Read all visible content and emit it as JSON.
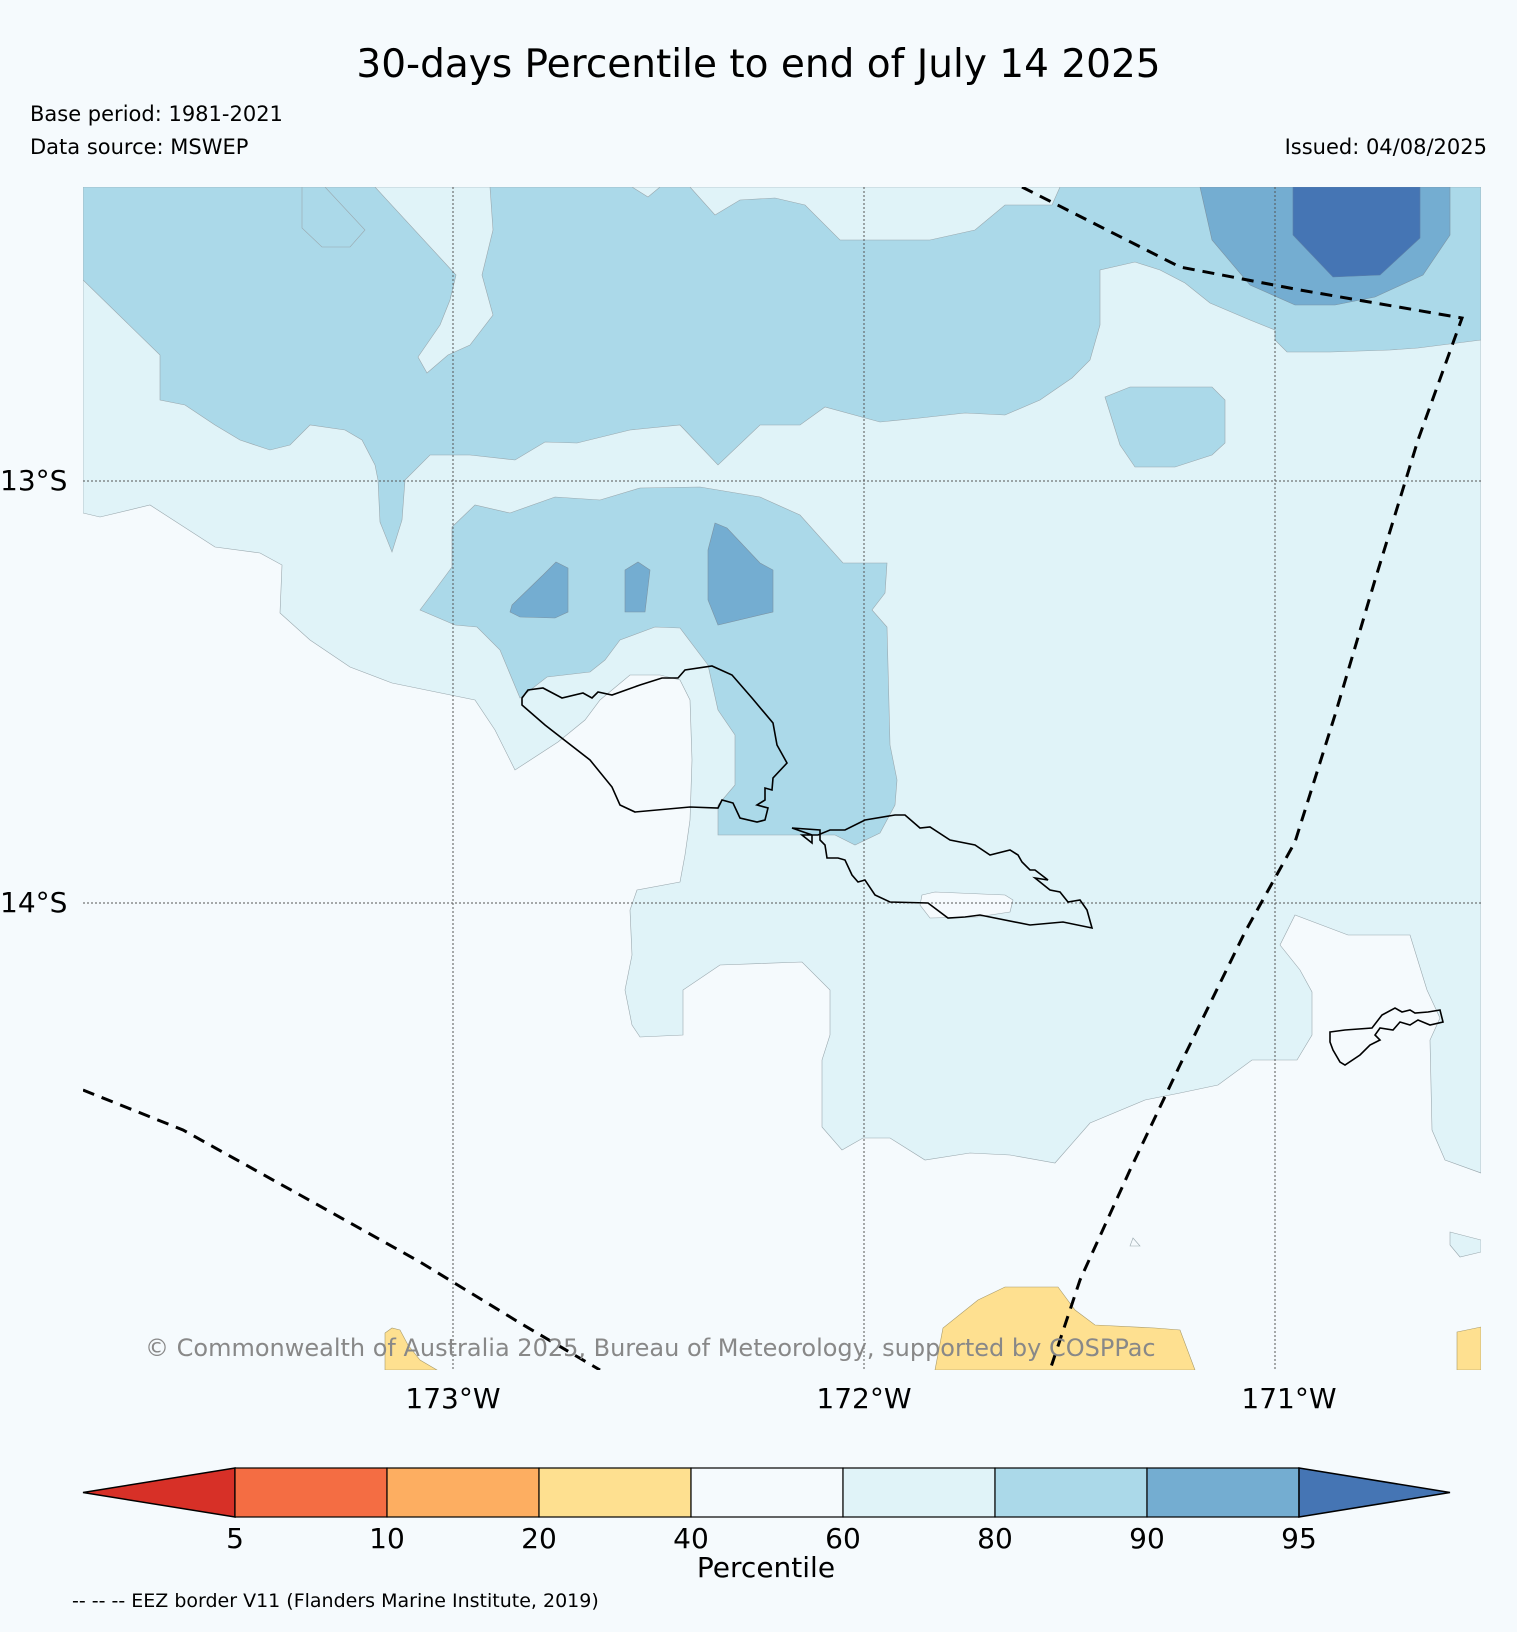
{
  "header": {
    "title": "30-days Percentile to end of July 14 2025",
    "base_period": "Base period: 1981-2021",
    "data_source": "Data source: MSWEP",
    "issued": "Issued: 04/08/2025"
  },
  "map": {
    "lat_labels": [
      "13°S",
      "14°S"
    ],
    "lon_labels": [
      "173°W",
      "172°W",
      "171°W"
    ],
    "copyright": "© Commonwealth of Australia 2025, Bureau of Meteorology, supported by COSPPac",
    "boundary_legend": "-- -- -- EEZ border V11 (Flanders Marine Institute, 2019)"
  },
  "colorbar": {
    "title": "Percentile",
    "ticks": [
      "5",
      "10",
      "20",
      "40",
      "60",
      "80",
      "90",
      "95"
    ],
    "colors": [
      "#d73027",
      "#f46d43",
      "#fdae61",
      "#fee090",
      "#f5fafd",
      "#e0f3f8",
      "#abd9e9",
      "#74add1",
      "#4575b4"
    ]
  },
  "colors": {
    "background": "#f5fafd",
    "p60_80": "#e0f3f8",
    "p80_90": "#abd9e9",
    "p90_95": "#74add1",
    "p95_plus": "#4575b4",
    "p20_40": "#fee090"
  }
}
